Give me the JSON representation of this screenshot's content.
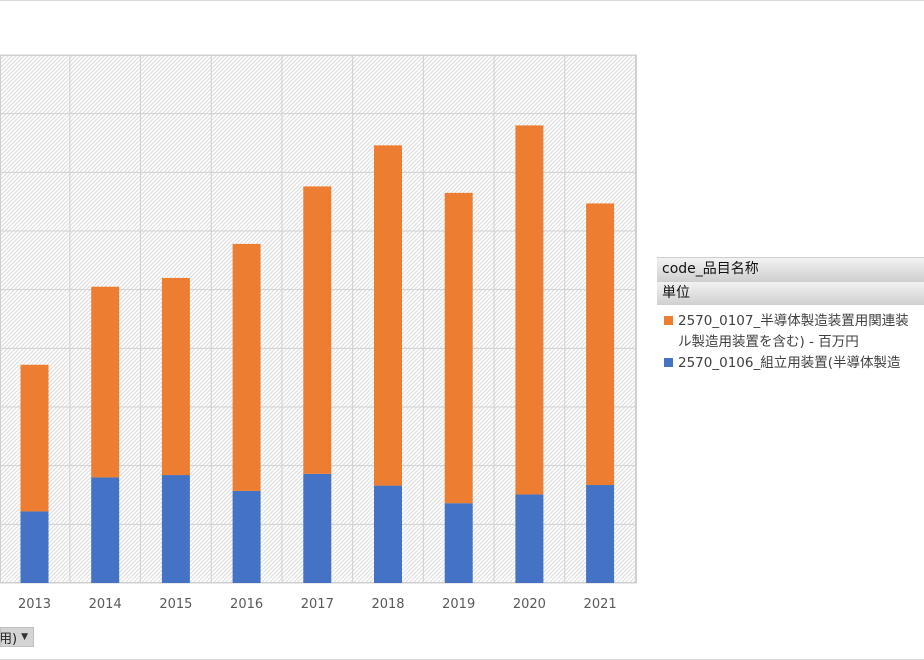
{
  "chart_data": {
    "type": "bar",
    "stacked": true,
    "categories": [
      "2013",
      "2014",
      "2015",
      "2016",
      "2017",
      "2018",
      "2019",
      "2020",
      "2021"
    ],
    "series": [
      {
        "name": "2570_0106_組立用装置(半導体製造",
        "color": "#4472c4",
        "values": [
          122,
          180,
          184,
          157,
          186,
          166,
          136,
          151,
          167
        ]
      },
      {
        "name": "2570_0107_半導体製造装置用関連装置(ウエハ製造用装置を含む) - 百万円",
        "color": "#ed7d31",
        "values": [
          250,
          325,
          336,
          421,
          490,
          580,
          529,
          629,
          480
        ]
      }
    ],
    "ylim": [
      0,
      900
    ],
    "grid": true,
    "legend_position": "right"
  },
  "field_button": {
    "label": "用)"
  },
  "legend": {
    "header1": "code_品目名称",
    "header2": "単位",
    "entries": [
      {
        "line1": "2570_0107_半導体製造装置用関連装",
        "line2": "ル製造用装置を含む) - 百万円",
        "color": "#ed7d31"
      },
      {
        "line1": "2570_0106_組立用装置(半導体製造",
        "color": "#4472c4"
      }
    ]
  }
}
